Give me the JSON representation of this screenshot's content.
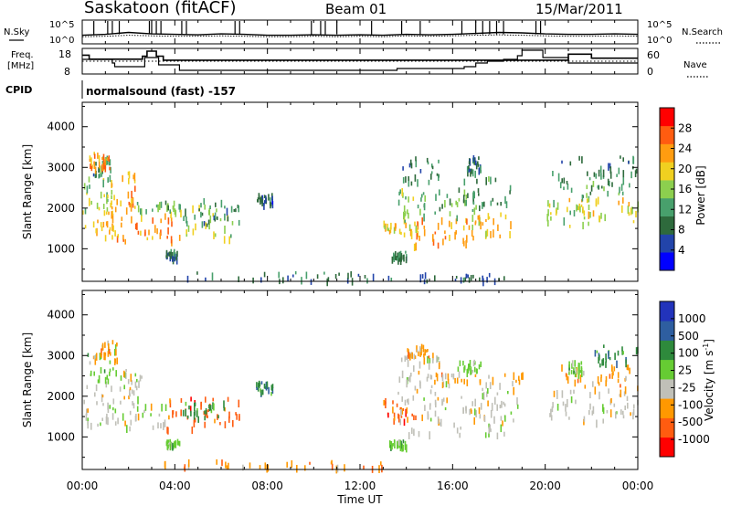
{
  "header": {
    "station": "Saskatoon (fitACF)",
    "beam": "Beam 01",
    "date": "15/Mar/2011"
  },
  "labels": {
    "nsky": "N.Sky",
    "nsearch": "N.Search",
    "freq_line1": "Freq.",
    "freq_line2": "[MHz]",
    "nave": "Nave",
    "cpid": "CPID",
    "cpid_value": "normalsound (fast) -157"
  },
  "chart_data": [
    {
      "type": "line",
      "name": "noise",
      "ylabel_left": "N.Sky",
      "ylabel_right": "N.Search",
      "left_ticks": [
        "10^5",
        "10^0"
      ],
      "right_ticks": [
        "10^5",
        "10^0"
      ],
      "x": [
        0,
        1,
        2,
        3,
        4,
        5,
        6,
        7,
        8,
        9,
        10,
        11,
        12,
        13,
        14,
        15,
        16,
        17,
        18,
        19,
        20,
        21,
        22,
        23,
        24
      ],
      "n_sky_log": [
        1.8,
        2.0,
        2.4,
        2.1,
        2.0,
        1.9,
        2.1,
        2.0,
        1.8,
        1.8,
        1.9,
        1.8,
        1.9,
        1.8,
        2.0,
        1.9,
        2.0,
        2.2,
        2.4,
        2.3,
        2.1,
        2.0,
        2.0,
        2.1,
        2.0
      ],
      "n_search_log": [
        1.5,
        1.6,
        1.8,
        1.7,
        1.6,
        1.6,
        1.7,
        1.6,
        1.5,
        1.5,
        1.6,
        1.5,
        1.6,
        1.5,
        1.7,
        1.6,
        1.7,
        1.8,
        1.9,
        1.8,
        1.7,
        1.6,
        1.6,
        1.7,
        1.6
      ],
      "spike_hours": [
        0.5,
        1.1,
        1.3,
        1.6,
        2.9,
        3.0,
        3.2,
        3.4,
        4.3,
        4.5,
        6.6,
        6.8,
        9.9,
        10.3,
        10.5,
        11.0,
        12.5,
        13.8,
        14.6,
        16.4,
        17.0,
        17.3,
        17.6,
        17.9,
        18.2,
        19.6,
        19.8
      ],
      "y_log_range": [
        0,
        5
      ]
    },
    {
      "type": "line",
      "name": "frequency_nave",
      "left_ticks": [
        "18",
        "8"
      ],
      "right_ticks": [
        "60",
        "0"
      ],
      "freq_mhz": {
        "x": [
          0,
          0.3,
          1.3,
          2.6,
          2.8,
          3.2,
          3.5,
          4.0,
          20.5,
          21.0,
          21.3,
          22.0,
          24
        ],
        "y": [
          16,
          14,
          14,
          15.5,
          18,
          15.5,
          13.5,
          13.5,
          13.5,
          16.5,
          16.5,
          14.5,
          14.5
        ]
      },
      "nave": {
        "x": [
          0,
          1.3,
          1.4,
          2.6,
          2.7,
          3.2,
          3.3,
          4.1,
          4.2,
          12.0,
          13.6,
          15.0,
          16.5,
          17.0,
          17.5,
          18.2,
          18.8,
          19.0,
          19.2,
          19.9,
          21.0,
          24
        ],
        "y": [
          35,
          25,
          15,
          15,
          40,
          40,
          20,
          20,
          5,
          5,
          10,
          10,
          15,
          25,
          30,
          35,
          45,
          60,
          60,
          40,
          25,
          25
        ]
      },
      "nave_dotted_level": 30
    },
    {
      "type": "heatmap",
      "name": "power",
      "ylabel": "Slant Range [km]",
      "yticks": [
        1000,
        2000,
        3000,
        4000
      ],
      "ylim": [
        200,
        4600
      ],
      "xlim": [
        0,
        24
      ],
      "colorbar_label": "Power [dB]",
      "colorbar_ticks": [
        "4",
        "8",
        "12",
        "16",
        "20",
        "24",
        "28"
      ],
      "colorscale": [
        "#0000ff",
        "#2244aa",
        "#2e6a3c",
        "#48a06c",
        "#8ccf4e",
        "#f0d020",
        "#ff9c10",
        "#ff5c10",
        "#ff0000"
      ],
      "vmin": 0,
      "vmax": 32,
      "patches": [
        {
          "x0": 0.0,
          "x1": 1.4,
          "r0": 1300,
          "r1": 2000,
          "v": 22
        },
        {
          "x0": 0.0,
          "x1": 1.4,
          "r0": 2000,
          "r1": 2800,
          "v": 16
        },
        {
          "x0": 0.4,
          "x1": 1.2,
          "r0": 2800,
          "r1": 3300,
          "v": 10
        },
        {
          "x0": 1.2,
          "x1": 2.3,
          "r0": 2000,
          "r1": 3000,
          "v": 24
        },
        {
          "x0": 1.4,
          "x1": 4.2,
          "r0": 1200,
          "r1": 1900,
          "v": 25
        },
        {
          "x0": 2.3,
          "x1": 4.5,
          "r0": 1900,
          "r1": 2200,
          "v": 14
        },
        {
          "x0": 4.2,
          "x1": 6.5,
          "r0": 1300,
          "r1": 2100,
          "v": 17
        },
        {
          "x0": 5.0,
          "x1": 6.8,
          "r0": 1600,
          "r1": 2300,
          "v": 9
        },
        {
          "x0": 3.6,
          "x1": 4.1,
          "r0": 800,
          "r1": 1000,
          "v": 8
        },
        {
          "x0": 0.3,
          "x1": 1.2,
          "r0": 3000,
          "r1": 3400,
          "v": 24
        },
        {
          "x0": 7.5,
          "x1": 8.2,
          "r0": 2100,
          "r1": 2400,
          "v": 6
        },
        {
          "x0": 3.5,
          "x1": 13.5,
          "r0": 250,
          "r1": 450,
          "v": 7
        },
        {
          "x0": 13.0,
          "x1": 14.5,
          "r0": 1400,
          "r1": 1700,
          "v": 20
        },
        {
          "x0": 13.6,
          "x1": 15.0,
          "r0": 1700,
          "r1": 2600,
          "v": 14
        },
        {
          "x0": 13.7,
          "x1": 15.4,
          "r0": 2600,
          "r1": 3300,
          "v": 9
        },
        {
          "x0": 14.0,
          "x1": 17.0,
          "r0": 1100,
          "r1": 1800,
          "v": 23
        },
        {
          "x0": 15.2,
          "x1": 17.2,
          "r0": 1800,
          "r1": 2500,
          "v": 13
        },
        {
          "x0": 16.5,
          "x1": 18.6,
          "r0": 1300,
          "r1": 2000,
          "v": 21
        },
        {
          "x0": 16.2,
          "x1": 18.5,
          "r0": 2100,
          "r1": 2800,
          "v": 11
        },
        {
          "x0": 16.6,
          "x1": 17.2,
          "r0": 2900,
          "r1": 3300,
          "v": 7
        },
        {
          "x0": 14.5,
          "x1": 18.3,
          "r0": 250,
          "r1": 420,
          "v": 6
        },
        {
          "x0": 20.0,
          "x1": 22.0,
          "r0": 1500,
          "r1": 2300,
          "v": 16
        },
        {
          "x0": 21.0,
          "x1": 24.0,
          "r0": 1700,
          "r1": 2300,
          "v": 20
        },
        {
          "x0": 20.5,
          "x1": 24.0,
          "r0": 2300,
          "r1": 2900,
          "v": 12
        },
        {
          "x0": 20.2,
          "x1": 24.0,
          "r0": 2900,
          "r1": 3300,
          "v": 9
        },
        {
          "x0": 13.3,
          "x1": 14.0,
          "r0": 800,
          "r1": 950,
          "v": 10
        }
      ]
    },
    {
      "type": "heatmap",
      "name": "velocity",
      "ylabel": "Slant Range [km]",
      "yticks": [
        1000,
        2000,
        3000,
        4000
      ],
      "ylim": [
        200,
        4600
      ],
      "xlim": [
        0,
        24
      ],
      "colorbar_label": "Velocity [m s^-1]",
      "colorbar_ticks": [
        "1000",
        "500",
        "100",
        "25",
        "-25",
        "-100",
        "-500",
        "-1000"
      ],
      "colorscale": [
        "#2233bb",
        "#2e5ea0",
        "#2e8a3c",
        "#66cc33",
        "#c0c0b8",
        "#ff9800",
        "#ff5c10",
        "#ff0000"
      ],
      "patches": [
        {
          "x0": 0.0,
          "x1": 1.3,
          "r0": 1300,
          "r1": 2300,
          "c": 4
        },
        {
          "x0": 0.2,
          "x1": 1.5,
          "r0": 2300,
          "r1": 3300,
          "c": 3
        },
        {
          "x0": 1.3,
          "x1": 3.6,
          "r0": 1200,
          "r1": 2000,
          "c": 4
        },
        {
          "x0": 1.6,
          "x1": 2.6,
          "r0": 2000,
          "r1": 2700,
          "c": 4
        },
        {
          "x0": 3.6,
          "x1": 6.8,
          "r0": 1200,
          "r1": 2000,
          "c": 6
        },
        {
          "x0": 4.3,
          "x1": 6.3,
          "r0": 1500,
          "r1": 1900,
          "c": 2
        },
        {
          "x0": 0.3,
          "x1": 1.5,
          "r0": 2900,
          "r1": 3400,
          "c": 5
        },
        {
          "x0": 3.6,
          "x1": 4.2,
          "r0": 800,
          "r1": 950,
          "c": 3
        },
        {
          "x0": 7.5,
          "x1": 8.2,
          "r0": 2100,
          "r1": 2400,
          "c": 2
        },
        {
          "x0": 3.5,
          "x1": 13.5,
          "r0": 250,
          "r1": 450,
          "c": 5
        },
        {
          "x0": 13.0,
          "x1": 14.5,
          "r0": 1400,
          "r1": 2000,
          "c": 6
        },
        {
          "x0": 13.6,
          "x1": 16.0,
          "r0": 1100,
          "r1": 2600,
          "c": 4
        },
        {
          "x0": 13.7,
          "x1": 15.4,
          "r0": 2600,
          "r1": 3200,
          "c": 4
        },
        {
          "x0": 15.2,
          "x1": 19.0,
          "r0": 2400,
          "r1": 2600,
          "c": 5
        },
        {
          "x0": 16.0,
          "x1": 18.8,
          "r0": 1100,
          "r1": 2400,
          "c": 4
        },
        {
          "x0": 16.2,
          "x1": 17.2,
          "r0": 2600,
          "r1": 2900,
          "c": 3
        },
        {
          "x0": 14.0,
          "x1": 15.0,
          "r0": 3000,
          "r1": 3300,
          "c": 5
        },
        {
          "x0": 20.0,
          "x1": 24.0,
          "r0": 1400,
          "r1": 2200,
          "c": 4
        },
        {
          "x0": 20.5,
          "x1": 24.0,
          "r0": 2200,
          "r1": 2800,
          "c": 5
        },
        {
          "x0": 22.0,
          "x1": 24.0,
          "r0": 2800,
          "r1": 3300,
          "c": 2
        },
        {
          "x0": 21.0,
          "x1": 21.6,
          "r0": 2600,
          "r1": 2900,
          "c": 3
        },
        {
          "x0": 13.2,
          "x1": 14.0,
          "r0": 800,
          "r1": 950,
          "c": 3
        }
      ]
    }
  ],
  "xaxis": {
    "ticks": [
      "00:00",
      "04:00",
      "08:00",
      "12:00",
      "16:00",
      "20:00",
      "00:00"
    ],
    "tick_hours": [
      0,
      4,
      8,
      12,
      16,
      20,
      24
    ],
    "label": "Time UT"
  }
}
